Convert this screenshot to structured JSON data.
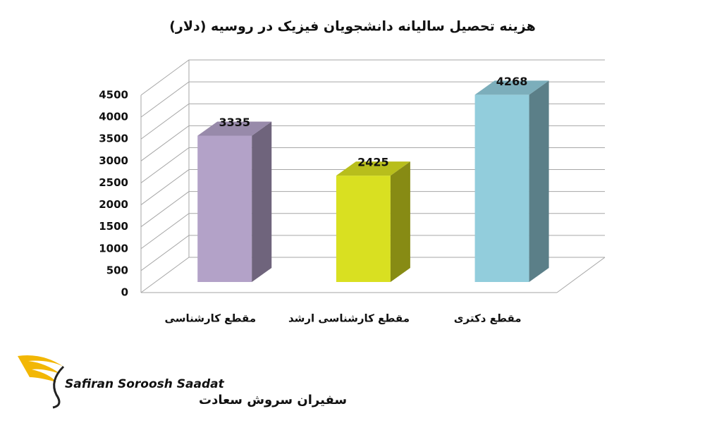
{
  "chart_data": {
    "type": "bar3d",
    "title": "هزینه تحصیل سالیانه دانشجویان فیزیک در روسیه (دلار)",
    "categories": [
      "مقطع کارشناسی",
      "مقطع کارشناسی ارشد",
      "مقطع دکتری"
    ],
    "values": [
      3335,
      2425,
      4268
    ],
    "colors": [
      "#b3a2c8",
      "#d9e021",
      "#92cddc"
    ],
    "ylim": [
      0,
      4500
    ],
    "yticks": [
      0,
      500,
      1000,
      1500,
      2000,
      2500,
      3000,
      3500,
      4000,
      4500
    ],
    "grid": true
  },
  "logo": {
    "latin": "Safiran Soroosh Saadat",
    "persian": "سفیران سروش سعادت"
  }
}
